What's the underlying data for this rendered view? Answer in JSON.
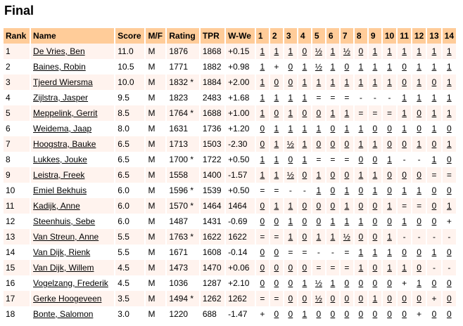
{
  "title": "Final",
  "headers": [
    "Rank",
    "Name",
    "Score",
    "M/F",
    "Rating",
    "TPR",
    "W-We",
    "1",
    "2",
    "3",
    "4",
    "5",
    "6",
    "7",
    "8",
    "9",
    "10",
    "11",
    "12",
    "13",
    "14"
  ],
  "rows": [
    {
      "rank": "1",
      "name": "De Vries, Ben",
      "score": "11.0",
      "mf": "M",
      "rating": "1876",
      "tpr": "1868",
      "wwe": "+0.15",
      "rounds": [
        "1",
        "1",
        "1",
        "0",
        "½",
        "1",
        "½",
        "0",
        "1",
        "1",
        "1",
        "1",
        "1",
        "1"
      ]
    },
    {
      "rank": "2",
      "name": "Baines, Robin",
      "score": "10.5",
      "mf": "M",
      "rating": "1771",
      "tpr": "1882",
      "wwe": "+0.98",
      "rounds": [
        "1",
        "+",
        "0",
        "1",
        "½",
        "1",
        "0",
        "1",
        "1",
        "1",
        "0",
        "1",
        "1",
        "1"
      ]
    },
    {
      "rank": "3",
      "name": "Tjeerd Wiersma",
      "score": "10.0",
      "mf": "M",
      "rating": "1832 *",
      "tpr": "1884",
      "wwe": "+2.00",
      "rounds": [
        "1",
        "0",
        "0",
        "1",
        "1",
        "1",
        "1",
        "1",
        "1",
        "1",
        "0",
        "1",
        "0",
        "1"
      ]
    },
    {
      "rank": "4",
      "name": "Zijlstra, Jasper",
      "score": "9.5",
      "mf": "M",
      "rating": "1823",
      "tpr": "2483",
      "wwe": "+1.68",
      "rounds": [
        "1",
        "1",
        "1",
        "1",
        "=",
        "=",
        "=",
        "-",
        "-",
        "-",
        "1",
        "1",
        "1",
        "1"
      ]
    },
    {
      "rank": "5",
      "name": "Meppelink, Gerrit",
      "score": "8.5",
      "mf": "M",
      "rating": "1764 *",
      "tpr": "1688",
      "wwe": "+1.00",
      "rounds": [
        "1",
        "0",
        "1",
        "0",
        "0",
        "1",
        "1",
        "=",
        "=",
        "=",
        "1",
        "0",
        "1",
        "1"
      ]
    },
    {
      "rank": "6",
      "name": "Weidema, Jaap",
      "score": "8.0",
      "mf": "M",
      "rating": "1631",
      "tpr": "1736",
      "wwe": "+1.20",
      "rounds": [
        "0",
        "1",
        "1",
        "1",
        "1",
        "0",
        "1",
        "1",
        "0",
        "0",
        "1",
        "0",
        "1",
        "0"
      ]
    },
    {
      "rank": "7",
      "name": "Hoogstra, Bauke",
      "score": "6.5",
      "mf": "M",
      "rating": "1713",
      "tpr": "1503",
      "wwe": "-2.30",
      "rounds": [
        "0",
        "1",
        "½",
        "1",
        "0",
        "0",
        "0",
        "1",
        "1",
        "0",
        "0",
        "1",
        "0",
        "1"
      ]
    },
    {
      "rank": "8",
      "name": "Lukkes, Jouke",
      "score": "6.5",
      "mf": "M",
      "rating": "1700 *",
      "tpr": "1722",
      "wwe": "+0.50",
      "rounds": [
        "1",
        "1",
        "0",
        "1",
        "=",
        "=",
        "=",
        "0",
        "0",
        "1",
        "-",
        "-",
        "1",
        "0"
      ]
    },
    {
      "rank": "9",
      "name": "Leistra, Freek",
      "score": "6.5",
      "mf": "M",
      "rating": "1558",
      "tpr": "1400",
      "wwe": "-1.57",
      "rounds": [
        "1",
        "1",
        "½",
        "0",
        "1",
        "0",
        "0",
        "1",
        "1",
        "0",
        "0",
        "0",
        "=",
        "="
      ]
    },
    {
      "rank": "10",
      "name": "Emiel Bekhuis",
      "score": "6.0",
      "mf": "M",
      "rating": "1596 *",
      "tpr": "1539",
      "wwe": "+0.50",
      "rounds": [
        "=",
        "=",
        "-",
        "-",
        "1",
        "0",
        "1",
        "0",
        "1",
        "0",
        "1",
        "1",
        "0",
        "0"
      ]
    },
    {
      "rank": "11",
      "name": "Kadijk, Anne",
      "score": "6.0",
      "mf": "M",
      "rating": "1570 *",
      "tpr": "1464",
      "wwe": "1464",
      "rounds": [
        "0",
        "1",
        "1",
        "0",
        "0",
        "0",
        "1",
        "0",
        "0",
        "1",
        "=",
        "=",
        "0",
        "1"
      ]
    },
    {
      "rank": "12",
      "name": "Steenhuis, Sebe",
      "score": "6.0",
      "mf": "M",
      "rating": "1487",
      "tpr": "1431",
      "wwe": "-0.69",
      "rounds": [
        "0",
        "0",
        "1",
        "0",
        "0",
        "1",
        "1",
        "1",
        "0",
        "0",
        "1",
        "0",
        "0",
        "+"
      ]
    },
    {
      "rank": "13",
      "name": "Van Streun, Anne",
      "score": "5.5",
      "mf": "M",
      "rating": "1763 *",
      "tpr": "1622",
      "wwe": "1622",
      "rounds": [
        "=",
        "=",
        "1",
        "0",
        "1",
        "1",
        "½",
        "0",
        "0",
        "1",
        "-",
        "-",
        "-",
        "-"
      ]
    },
    {
      "rank": "14",
      "name": "Van Dijk, Rienk",
      "score": "5.5",
      "mf": "M",
      "rating": "1671",
      "tpr": "1608",
      "wwe": "-0.14",
      "rounds": [
        "0",
        "0",
        "=",
        "=",
        "-",
        "-",
        "=",
        "1",
        "1",
        "1",
        "0",
        "0",
        "1",
        "0"
      ]
    },
    {
      "rank": "15",
      "name": "Van Dijk, Willem",
      "score": "4.5",
      "mf": "M",
      "rating": "1473",
      "tpr": "1470",
      "wwe": "+0.06",
      "rounds": [
        "0",
        "0",
        "0",
        "0",
        "=",
        "=",
        "=",
        "1",
        "0",
        "1",
        "1",
        "0",
        "-",
        "-"
      ]
    },
    {
      "rank": "16",
      "name": "Vogelzang, Frederik",
      "score": "4.5",
      "mf": "M",
      "rating": "1036",
      "tpr": "1287",
      "wwe": "+2.10",
      "rounds": [
        "0",
        "0",
        "0",
        "1",
        "½",
        "1",
        "0",
        "0",
        "0",
        "0",
        "+",
        "1",
        "0",
        "0"
      ]
    },
    {
      "rank": "17",
      "name": "Gerke Hoogeveen",
      "score": "3.5",
      "mf": "M",
      "rating": "1494 *",
      "tpr": "1262",
      "wwe": "1262",
      "rounds": [
        "=",
        "=",
        "0",
        "0",
        "½",
        "0",
        "0",
        "0",
        "1",
        "0",
        "0",
        "0",
        "+",
        "0"
      ]
    },
    {
      "rank": "18",
      "name": "Bonte, Salomon",
      "score": "3.0",
      "mf": "M",
      "rating": "1220",
      "tpr": "688",
      "wwe": "-1.47",
      "rounds": [
        "+",
        "0",
        "0",
        "1",
        "0",
        "0",
        "0",
        "0",
        "0",
        "0",
        "0",
        "+",
        "0",
        "0"
      ]
    }
  ],
  "colors": {
    "header_bg": "#ffcc99",
    "odd_row_bg": "#fff3ee"
  }
}
